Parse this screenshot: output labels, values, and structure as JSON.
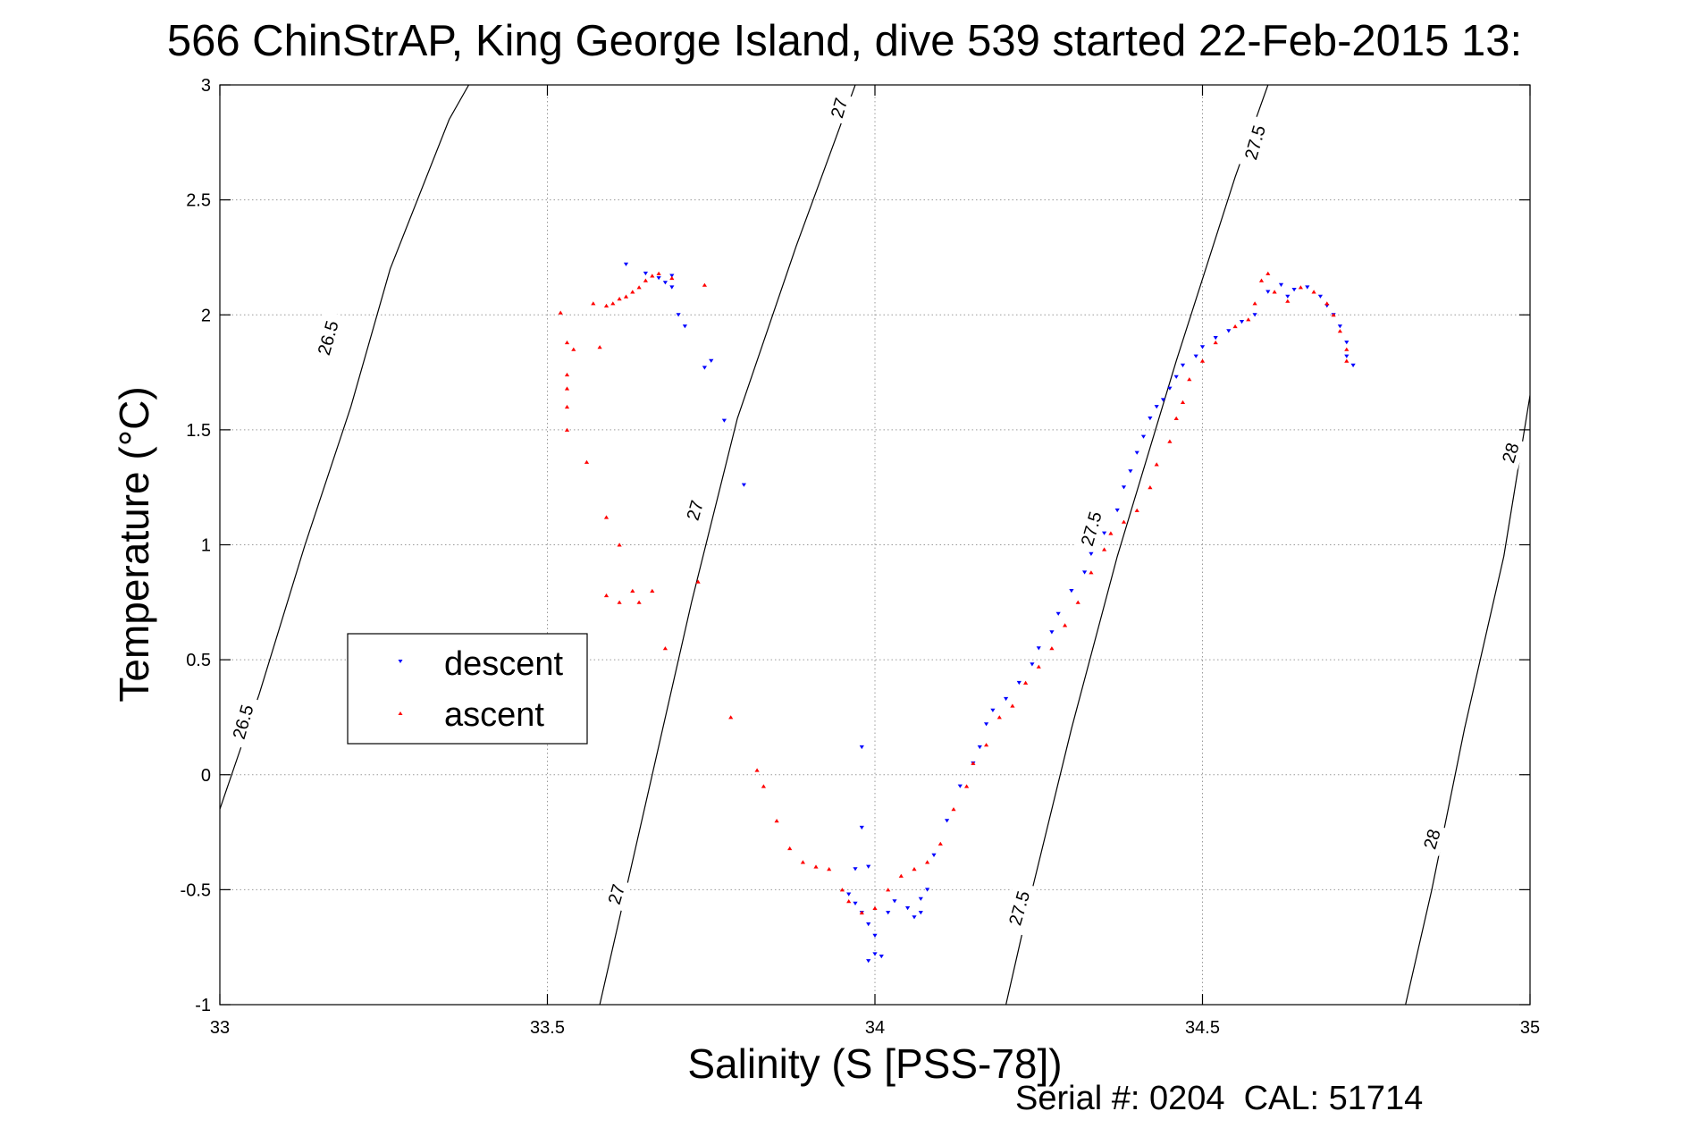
{
  "chart_data": {
    "type": "scatter",
    "title": "566 ChinStrAP, King George Island, dive 539 started 22-Feb-2015 13:",
    "xlabel": "Salinity (S [PSS-78])",
    "ylabel": "Temperature (°C)",
    "footer": "Serial #: 0204  CAL: 51714",
    "xlim": [
      33,
      35
    ],
    "ylim": [
      -1,
      3
    ],
    "x_ticks": [
      33,
      33.5,
      34,
      34.5,
      35
    ],
    "x_tick_labels": [
      "33",
      "33.5",
      "34",
      "34.5",
      "35"
    ],
    "y_ticks": [
      -1,
      -0.5,
      0,
      0.5,
      1,
      1.5,
      2,
      2.5,
      3
    ],
    "y_tick_labels": [
      "-1",
      "-0.5",
      "0",
      "0.5",
      "1",
      "1.5",
      "2",
      "2.5",
      "3"
    ],
    "grid": true,
    "legend_position": "center-left",
    "isopycnals": [
      {
        "label": "26.5",
        "points": [
          [
            33.0,
            -0.15
          ],
          [
            33.06,
            0.35
          ],
          [
            33.13,
            1.0
          ],
          [
            33.2,
            1.6
          ],
          [
            33.26,
            2.2
          ],
          [
            33.35,
            2.85
          ],
          [
            33.38,
            3.0
          ]
        ],
        "label_points": [
          [
            33.035,
            0.23
          ],
          [
            33.165,
            1.9
          ]
        ]
      },
      {
        "label": "27",
        "points": [
          [
            33.58,
            -1.0
          ],
          [
            33.62,
            -0.5
          ],
          [
            33.66,
            0.0
          ],
          [
            33.72,
            0.75
          ],
          [
            33.79,
            1.55
          ],
          [
            33.88,
            2.3
          ],
          [
            33.97,
            3.0
          ]
        ],
        "label_points": [
          [
            33.605,
            -0.52
          ],
          [
            33.725,
            1.15
          ],
          [
            33.945,
            2.9
          ]
        ]
      },
      {
        "label": "27.5",
        "points": [
          [
            34.2,
            -1.0
          ],
          [
            34.24,
            -0.5
          ],
          [
            34.3,
            0.2
          ],
          [
            34.37,
            0.95
          ],
          [
            34.46,
            1.8
          ],
          [
            34.55,
            2.6
          ],
          [
            34.6,
            3.0
          ]
        ],
        "label_points": [
          [
            34.22,
            -0.58
          ],
          [
            34.33,
            1.07
          ],
          [
            34.58,
            2.75
          ]
        ]
      },
      {
        "label": "28",
        "points": [
          [
            34.81,
            -1.0
          ],
          [
            34.85,
            -0.5
          ],
          [
            34.9,
            0.2
          ],
          [
            34.96,
            0.95
          ],
          [
            35.0,
            1.65
          ]
        ],
        "label_points": [
          [
            34.85,
            -0.28
          ],
          [
            34.97,
            1.4
          ]
        ]
      }
    ],
    "series": [
      {
        "name": "descent",
        "color": "#0000ff",
        "marker": "triangle-down",
        "points": [
          [
            33.62,
            2.22
          ],
          [
            33.65,
            2.18
          ],
          [
            33.67,
            2.16
          ],
          [
            33.68,
            2.14
          ],
          [
            33.69,
            2.12
          ],
          [
            33.69,
            2.17
          ],
          [
            33.7,
            2.0
          ],
          [
            33.71,
            1.95
          ],
          [
            33.74,
            1.77
          ],
          [
            33.75,
            1.8
          ],
          [
            33.77,
            1.54
          ],
          [
            33.8,
            1.26
          ],
          [
            33.98,
            0.12
          ],
          [
            33.98,
            -0.23
          ],
          [
            33.97,
            -0.41
          ],
          [
            33.99,
            -0.4
          ],
          [
            33.96,
            -0.52
          ],
          [
            33.97,
            -0.56
          ],
          [
            33.98,
            -0.6
          ],
          [
            33.99,
            -0.65
          ],
          [
            34.0,
            -0.7
          ],
          [
            34.0,
            -0.78
          ],
          [
            33.99,
            -0.81
          ],
          [
            34.01,
            -0.79
          ],
          [
            34.02,
            -0.6
          ],
          [
            34.03,
            -0.55
          ],
          [
            34.05,
            -0.58
          ],
          [
            34.06,
            -0.62
          ],
          [
            34.07,
            -0.6
          ],
          [
            34.07,
            -0.54
          ],
          [
            34.08,
            -0.5
          ],
          [
            34.09,
            -0.35
          ],
          [
            34.11,
            -0.2
          ],
          [
            34.13,
            -0.05
          ],
          [
            34.15,
            0.05
          ],
          [
            34.16,
            0.12
          ],
          [
            34.17,
            0.22
          ],
          [
            34.18,
            0.28
          ],
          [
            34.2,
            0.33
          ],
          [
            34.22,
            0.4
          ],
          [
            34.24,
            0.48
          ],
          [
            34.25,
            0.55
          ],
          [
            34.27,
            0.62
          ],
          [
            34.28,
            0.7
          ],
          [
            34.3,
            0.8
          ],
          [
            34.32,
            0.88
          ],
          [
            34.33,
            0.96
          ],
          [
            34.35,
            1.05
          ],
          [
            34.37,
            1.15
          ],
          [
            34.38,
            1.25
          ],
          [
            34.39,
            1.32
          ],
          [
            34.4,
            1.4
          ],
          [
            34.41,
            1.47
          ],
          [
            34.42,
            1.55
          ],
          [
            34.43,
            1.6
          ],
          [
            34.44,
            1.63
          ],
          [
            34.45,
            1.68
          ],
          [
            34.46,
            1.73
          ],
          [
            34.47,
            1.78
          ],
          [
            34.49,
            1.82
          ],
          [
            34.5,
            1.86
          ],
          [
            34.52,
            1.9
          ],
          [
            34.54,
            1.93
          ],
          [
            34.56,
            1.97
          ],
          [
            34.58,
            2.0
          ],
          [
            34.6,
            2.1
          ],
          [
            34.62,
            2.13
          ],
          [
            34.63,
            2.08
          ],
          [
            34.64,
            2.11
          ],
          [
            34.66,
            2.12
          ],
          [
            34.68,
            2.08
          ],
          [
            34.69,
            2.04
          ],
          [
            34.7,
            2.0
          ],
          [
            34.71,
            1.95
          ],
          [
            34.72,
            1.88
          ],
          [
            34.72,
            1.82
          ],
          [
            34.73,
            1.78
          ]
        ]
      },
      {
        "name": "ascent",
        "color": "#ff0000",
        "marker": "triangle-up",
        "points": [
          [
            33.69,
            2.16
          ],
          [
            33.67,
            2.18
          ],
          [
            33.66,
            2.17
          ],
          [
            33.65,
            2.15
          ],
          [
            33.64,
            2.12
          ],
          [
            33.63,
            2.1
          ],
          [
            33.62,
            2.08
          ],
          [
            33.61,
            2.07
          ],
          [
            33.6,
            2.05
          ],
          [
            33.59,
            2.04
          ],
          [
            33.57,
            2.05
          ],
          [
            33.52,
            2.01
          ],
          [
            33.53,
            1.88
          ],
          [
            33.54,
            1.85
          ],
          [
            33.53,
            1.74
          ],
          [
            33.53,
            1.68
          ],
          [
            33.53,
            1.6
          ],
          [
            33.53,
            1.5
          ],
          [
            33.58,
            1.86
          ],
          [
            33.56,
            1.36
          ],
          [
            33.59,
            1.12
          ],
          [
            33.61,
            1.0
          ],
          [
            33.59,
            0.78
          ],
          [
            33.63,
            0.8
          ],
          [
            33.61,
            0.75
          ],
          [
            33.64,
            0.75
          ],
          [
            33.66,
            0.8
          ],
          [
            33.73,
            0.84
          ],
          [
            33.68,
            0.55
          ],
          [
            33.74,
            2.13
          ],
          [
            33.78,
            0.25
          ],
          [
            33.82,
            0.02
          ],
          [
            33.83,
            -0.05
          ],
          [
            33.85,
            -0.2
          ],
          [
            33.87,
            -0.32
          ],
          [
            33.89,
            -0.38
          ],
          [
            33.91,
            -0.4
          ],
          [
            33.93,
            -0.41
          ],
          [
            33.95,
            -0.5
          ],
          [
            33.96,
            -0.55
          ],
          [
            33.98,
            -0.6
          ],
          [
            34.0,
            -0.58
          ],
          [
            34.02,
            -0.5
          ],
          [
            34.04,
            -0.44
          ],
          [
            34.06,
            -0.41
          ],
          [
            34.08,
            -0.38
          ],
          [
            34.1,
            -0.3
          ],
          [
            34.12,
            -0.15
          ],
          [
            34.14,
            -0.05
          ],
          [
            34.15,
            0.05
          ],
          [
            34.17,
            0.13
          ],
          [
            34.19,
            0.25
          ],
          [
            34.21,
            0.3
          ],
          [
            34.23,
            0.4
          ],
          [
            34.25,
            0.47
          ],
          [
            34.27,
            0.55
          ],
          [
            34.29,
            0.65
          ],
          [
            34.31,
            0.75
          ],
          [
            34.33,
            0.88
          ],
          [
            34.35,
            0.98
          ],
          [
            34.36,
            1.05
          ],
          [
            34.38,
            1.1
          ],
          [
            34.4,
            1.15
          ],
          [
            34.42,
            1.25
          ],
          [
            34.43,
            1.35
          ],
          [
            34.45,
            1.45
          ],
          [
            34.46,
            1.55
          ],
          [
            34.47,
            1.62
          ],
          [
            34.48,
            1.72
          ],
          [
            34.5,
            1.8
          ],
          [
            34.52,
            1.88
          ],
          [
            34.55,
            1.95
          ],
          [
            34.57,
            1.98
          ],
          [
            34.58,
            2.05
          ],
          [
            34.59,
            2.15
          ],
          [
            34.6,
            2.18
          ],
          [
            34.61,
            2.1
          ],
          [
            34.63,
            2.06
          ],
          [
            34.65,
            2.12
          ],
          [
            34.67,
            2.1
          ],
          [
            34.69,
            2.05
          ],
          [
            34.7,
            2.0
          ],
          [
            34.71,
            1.93
          ],
          [
            34.72,
            1.85
          ],
          [
            34.72,
            1.8
          ]
        ]
      }
    ]
  }
}
